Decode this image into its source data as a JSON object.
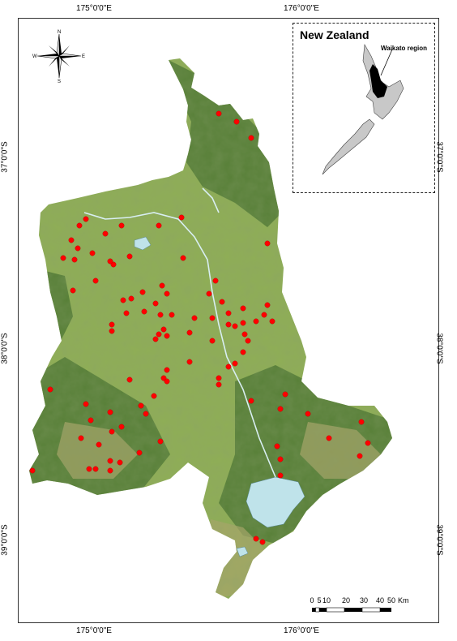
{
  "longitude_labels": [
    "175°0'0\"E",
    "176°0'0\"E"
  ],
  "latitude_labels": [
    "37°0'0\"S",
    "38°0'0\"S",
    "39°0'0\"S"
  ],
  "inset": {
    "title": "New Zealand",
    "region_label": "Waikato region"
  },
  "compass": {
    "n": "N",
    "s": "S",
    "e": "E",
    "w": "W"
  },
  "scale": {
    "ticks": [
      "0",
      "5",
      "10",
      "20",
      "30",
      "40",
      "50"
    ],
    "unit": "Km"
  },
  "colors": {
    "land": "#8fae55",
    "forest": "#3e6b2b",
    "scrub": "#a9a56a",
    "water": "#bfe3ea",
    "site": "#ff0000"
  }
}
